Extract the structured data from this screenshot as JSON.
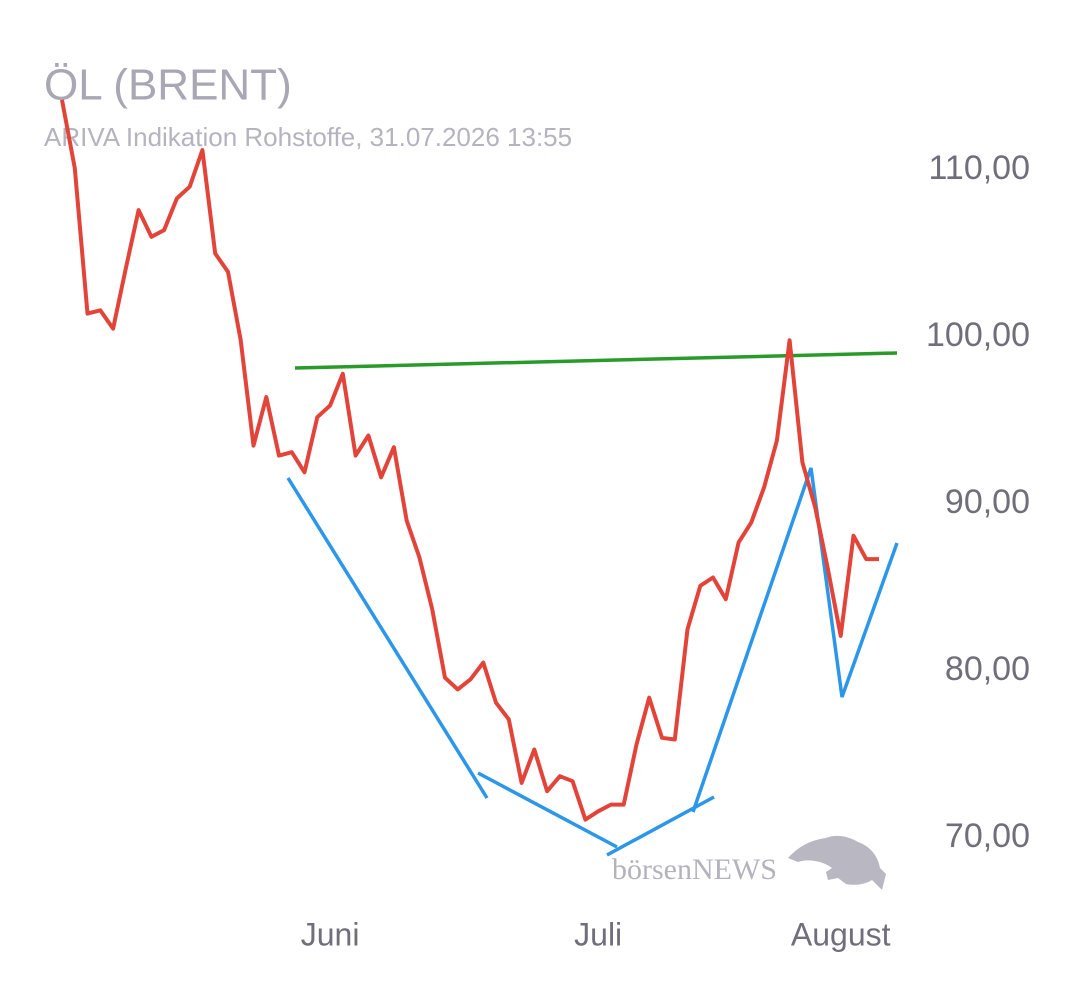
{
  "chart_data": {
    "type": "line",
    "title": "ÖL (BRENT)",
    "subtitle": "ARIVA Indikation Rohstoffe, 31.07.2026 13:55",
    "watermark": "börsenNEWS",
    "categories": [
      null,
      null,
      null,
      null,
      null,
      null,
      null,
      null,
      null,
      null,
      null,
      null,
      null,
      null,
      null,
      null,
      null,
      null,
      null,
      null,
      null,
      "Juni",
      null,
      null,
      null,
      null,
      null,
      null,
      null,
      null,
      null,
      null,
      null,
      null,
      null,
      null,
      null,
      null,
      null,
      null,
      null,
      null,
      "Juli",
      null,
      null,
      null,
      null,
      null,
      null,
      null,
      null,
      null,
      null,
      null,
      null,
      null,
      null,
      null,
      null,
      null,
      null,
      "August",
      null,
      null,
      null
    ],
    "series": [
      {
        "color": "#e2443a",
        "values": [
          114.2,
          110.1,
          101.4,
          101.6,
          100.5,
          104.1,
          107.6,
          106.0,
          106.4,
          108.3,
          109.0,
          111.2,
          105.0,
          103.9,
          99.8,
          93.5,
          96.4,
          92.9,
          93.1,
          91.9,
          95.2,
          95.9,
          97.8,
          92.9,
          94.1,
          91.6,
          93.4,
          89.0,
          86.8,
          83.7,
          79.6,
          78.9,
          79.5,
          80.5,
          78.1,
          77.1,
          73.3,
          75.3,
          72.8,
          73.7,
          73.4,
          71.1,
          71.6,
          72.0,
          72.0,
          75.6,
          78.4,
          76.0,
          75.9,
          82.5,
          85.1,
          85.6,
          84.3,
          87.7,
          88.9,
          91.0,
          93.8,
          99.8,
          92.5,
          89.8,
          86.1,
          82.1,
          88.1,
          86.7,
          86.7
        ]
      }
    ],
    "ylim": [
      66,
      114
    ],
    "yticks": [
      {
        "value": 70,
        "label": "70,00"
      },
      {
        "value": 80,
        "label": "80,00"
      },
      {
        "value": 90,
        "label": "90,00"
      },
      {
        "value": 100,
        "label": "100,00"
      },
      {
        "value": 110,
        "label": "110,00"
      }
    ],
    "grid": false
  }
}
